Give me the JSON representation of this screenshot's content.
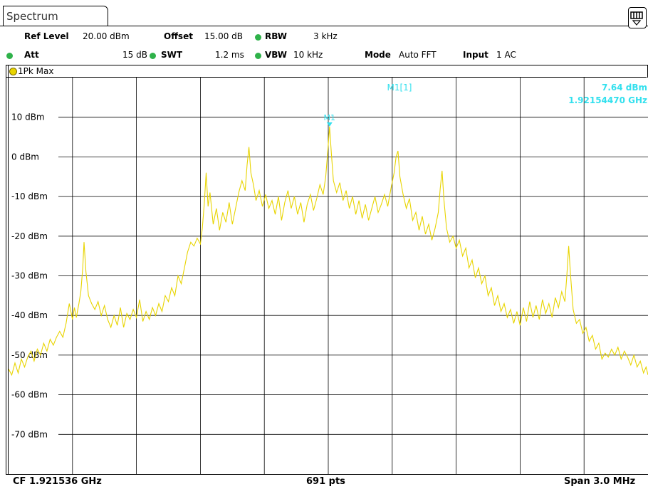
{
  "window": {
    "tab_label": "Spectrum"
  },
  "settings": {
    "ref_level_label": "Ref Level",
    "ref_level_value": "20.00 dBm",
    "offset_label": "Offset",
    "offset_value": "15.00 dB",
    "rbw_label": "RBW",
    "rbw_value": "3 kHz",
    "att_label": "Att",
    "att_value": "15 dB",
    "swt_label": "SWT",
    "swt_value": "1.2 ms",
    "vbw_label": "VBW",
    "vbw_value": "10 kHz",
    "mode_label": "Mode",
    "mode_value": "Auto FFT",
    "input_label": "Input",
    "input_value": "1 AC"
  },
  "trace": {
    "label": "1Pk Max",
    "color": "#e8d400"
  },
  "marker": {
    "name": "M1",
    "readout_label": "M1[1]",
    "readout_level": "7.64 dBm",
    "readout_freq": "1.92154470 GHz",
    "color": "#33e0ee"
  },
  "footer": {
    "cf": "CF 1.921536 GHz",
    "points": "691 pts",
    "span": "Span 3.0 MHz"
  },
  "chart_data": {
    "type": "line",
    "xlabel": "",
    "ylabel": "",
    "xlim": [
      0,
      10
    ],
    "ylim": [
      -80,
      20
    ],
    "y_ticks": [
      10,
      0,
      -10,
      -20,
      -30,
      -40,
      -50,
      -60,
      -70
    ],
    "y_tick_labels": [
      "10 dBm",
      "0 dBm",
      "-10 dBm",
      "-20 dBm",
      "-30 dBm",
      "-40 dBm",
      "-50 dBm",
      "-60 dBm",
      "-70 dBm"
    ],
    "grid": true,
    "background": "#ffffff",
    "series": [
      {
        "color": "#e8d400",
        "points": [
          [
            0.0,
            -53.5
          ],
          [
            0.05,
            -55.0
          ],
          [
            0.1,
            -52.0
          ],
          [
            0.15,
            -54.5
          ],
          [
            0.2,
            -51.0
          ],
          [
            0.25,
            -53.0
          ],
          [
            0.3,
            -50.5
          ],
          [
            0.35,
            -49.0
          ],
          [
            0.4,
            -51.5
          ],
          [
            0.45,
            -48.5
          ],
          [
            0.5,
            -50.0
          ],
          [
            0.55,
            -47.0
          ],
          [
            0.6,
            -49.0
          ],
          [
            0.65,
            -46.0
          ],
          [
            0.7,
            -47.5
          ],
          [
            0.75,
            -45.5
          ],
          [
            0.8,
            -44.0
          ],
          [
            0.85,
            -45.5
          ],
          [
            0.9,
            -42.0
          ],
          [
            0.95,
            -37.0
          ],
          [
            1.0,
            -41.0
          ],
          [
            1.03,
            -38.0
          ],
          [
            1.06,
            -40.5
          ],
          [
            1.1,
            -37.0
          ],
          [
            1.13,
            -34.0
          ],
          [
            1.16,
            -28.0
          ],
          [
            1.18,
            -21.5
          ],
          [
            1.21,
            -29.0
          ],
          [
            1.25,
            -35.0
          ],
          [
            1.3,
            -37.0
          ],
          [
            1.35,
            -38.5
          ],
          [
            1.4,
            -36.5
          ],
          [
            1.45,
            -40.0
          ],
          [
            1.5,
            -37.5
          ],
          [
            1.55,
            -41.0
          ],
          [
            1.6,
            -43.0
          ],
          [
            1.65,
            -40.0
          ],
          [
            1.7,
            -42.5
          ],
          [
            1.75,
            -38.0
          ],
          [
            1.8,
            -43.0
          ],
          [
            1.85,
            -39.5
          ],
          [
            1.9,
            -41.0
          ],
          [
            1.95,
            -38.5
          ],
          [
            2.0,
            -40.5
          ],
          [
            2.05,
            -36.0
          ],
          [
            2.1,
            -41.5
          ],
          [
            2.15,
            -39.0
          ],
          [
            2.2,
            -41.0
          ],
          [
            2.25,
            -38.0
          ],
          [
            2.3,
            -40.0
          ],
          [
            2.35,
            -37.0
          ],
          [
            2.4,
            -39.0
          ],
          [
            2.45,
            -35.0
          ],
          [
            2.5,
            -36.5
          ],
          [
            2.55,
            -33.0
          ],
          [
            2.6,
            -35.0
          ],
          [
            2.65,
            -30.0
          ],
          [
            2.7,
            -32.0
          ],
          [
            2.75,
            -28.0
          ],
          [
            2.8,
            -24.0
          ],
          [
            2.85,
            -21.5
          ],
          [
            2.9,
            -22.5
          ],
          [
            2.95,
            -20.5
          ],
          [
            3.0,
            -22.0
          ],
          [
            3.03,
            -18.0
          ],
          [
            3.06,
            -12.0
          ],
          [
            3.09,
            -4.0
          ],
          [
            3.12,
            -12.5
          ],
          [
            3.15,
            -9.0
          ],
          [
            3.2,
            -17.0
          ],
          [
            3.25,
            -13.0
          ],
          [
            3.3,
            -18.5
          ],
          [
            3.35,
            -14.0
          ],
          [
            3.4,
            -16.5
          ],
          [
            3.45,
            -11.5
          ],
          [
            3.5,
            -17.0
          ],
          [
            3.55,
            -13.0
          ],
          [
            3.6,
            -9.0
          ],
          [
            3.65,
            -6.0
          ],
          [
            3.7,
            -8.5
          ],
          [
            3.73,
            -2.0
          ],
          [
            3.76,
            2.5
          ],
          [
            3.79,
            -4.0
          ],
          [
            3.83,
            -7.0
          ],
          [
            3.87,
            -11.0
          ],
          [
            3.92,
            -8.5
          ],
          [
            3.97,
            -12.5
          ],
          [
            4.02,
            -9.5
          ],
          [
            4.07,
            -13.0
          ],
          [
            4.12,
            -11.0
          ],
          [
            4.17,
            -14.5
          ],
          [
            4.22,
            -10.0
          ],
          [
            4.27,
            -16.0
          ],
          [
            4.32,
            -11.5
          ],
          [
            4.37,
            -8.5
          ],
          [
            4.42,
            -13.0
          ],
          [
            4.47,
            -10.0
          ],
          [
            4.52,
            -14.5
          ],
          [
            4.57,
            -11.5
          ],
          [
            4.62,
            -16.5
          ],
          [
            4.67,
            -12.0
          ],
          [
            4.72,
            -9.5
          ],
          [
            4.77,
            -13.5
          ],
          [
            4.82,
            -10.5
          ],
          [
            4.87,
            -7.0
          ],
          [
            4.92,
            -9.5
          ],
          [
            4.96,
            -5.0
          ],
          [
            4.99,
            1.0
          ],
          [
            5.02,
            7.64
          ],
          [
            5.05,
            0.5
          ],
          [
            5.08,
            -6.0
          ],
          [
            5.13,
            -9.0
          ],
          [
            5.18,
            -6.5
          ],
          [
            5.23,
            -11.0
          ],
          [
            5.28,
            -8.5
          ],
          [
            5.33,
            -13.0
          ],
          [
            5.38,
            -10.0
          ],
          [
            5.43,
            -14.5
          ],
          [
            5.48,
            -11.0
          ],
          [
            5.53,
            -15.5
          ],
          [
            5.58,
            -12.0
          ],
          [
            5.63,
            -16.0
          ],
          [
            5.68,
            -13.0
          ],
          [
            5.73,
            -10.0
          ],
          [
            5.78,
            -14.0
          ],
          [
            5.83,
            -12.0
          ],
          [
            5.88,
            -9.5
          ],
          [
            5.93,
            -12.5
          ],
          [
            5.98,
            -8.0
          ],
          [
            6.03,
            -4.0
          ],
          [
            6.06,
            0.0
          ],
          [
            6.09,
            1.5
          ],
          [
            6.12,
            -5.0
          ],
          [
            6.17,
            -9.5
          ],
          [
            6.22,
            -13.0
          ],
          [
            6.27,
            -10.5
          ],
          [
            6.32,
            -16.0
          ],
          [
            6.37,
            -14.0
          ],
          [
            6.42,
            -18.5
          ],
          [
            6.47,
            -15.0
          ],
          [
            6.52,
            -19.5
          ],
          [
            6.57,
            -17.0
          ],
          [
            6.62,
            -21.0
          ],
          [
            6.67,
            -18.0
          ],
          [
            6.72,
            -14.0
          ],
          [
            6.75,
            -8.0
          ],
          [
            6.78,
            -3.5
          ],
          [
            6.81,
            -11.0
          ],
          [
            6.85,
            -18.0
          ],
          [
            6.9,
            -21.5
          ],
          [
            6.95,
            -20.0
          ],
          [
            7.0,
            -23.0
          ],
          [
            7.05,
            -21.0
          ],
          [
            7.1,
            -25.0
          ],
          [
            7.15,
            -23.0
          ],
          [
            7.2,
            -28.0
          ],
          [
            7.25,
            -26.0
          ],
          [
            7.3,
            -30.5
          ],
          [
            7.35,
            -28.0
          ],
          [
            7.4,
            -32.0
          ],
          [
            7.45,
            -30.0
          ],
          [
            7.5,
            -35.0
          ],
          [
            7.55,
            -33.0
          ],
          [
            7.6,
            -37.5
          ],
          [
            7.65,
            -35.0
          ],
          [
            7.7,
            -39.0
          ],
          [
            7.75,
            -37.0
          ],
          [
            7.8,
            -40.5
          ],
          [
            7.85,
            -38.5
          ],
          [
            7.9,
            -42.0
          ],
          [
            7.95,
            -39.0
          ],
          [
            8.0,
            -42.5
          ],
          [
            8.05,
            -38.0
          ],
          [
            8.1,
            -41.5
          ],
          [
            8.15,
            -36.5
          ],
          [
            8.2,
            -40.5
          ],
          [
            8.25,
            -37.5
          ],
          [
            8.3,
            -41.0
          ],
          [
            8.35,
            -36.0
          ],
          [
            8.4,
            -39.5
          ],
          [
            8.45,
            -37.0
          ],
          [
            8.5,
            -40.5
          ],
          [
            8.55,
            -35.5
          ],
          [
            8.6,
            -38.0
          ],
          [
            8.65,
            -34.0
          ],
          [
            8.7,
            -36.5
          ],
          [
            8.73,
            -30.0
          ],
          [
            8.76,
            -22.5
          ],
          [
            8.79,
            -30.0
          ],
          [
            8.83,
            -38.5
          ],
          [
            8.88,
            -42.0
          ],
          [
            8.93,
            -41.0
          ],
          [
            8.98,
            -44.5
          ],
          [
            9.03,
            -43.0
          ],
          [
            9.08,
            -46.5
          ],
          [
            9.13,
            -45.0
          ],
          [
            9.18,
            -48.5
          ],
          [
            9.23,
            -47.0
          ],
          [
            9.28,
            -51.0
          ],
          [
            9.33,
            -49.5
          ],
          [
            9.38,
            -50.5
          ],
          [
            9.43,
            -48.5
          ],
          [
            9.48,
            -50.0
          ],
          [
            9.53,
            -48.0
          ],
          [
            9.58,
            -51.0
          ],
          [
            9.63,
            -49.0
          ],
          [
            9.68,
            -50.5
          ],
          [
            9.73,
            -52.5
          ],
          [
            9.78,
            -50.0
          ],
          [
            9.83,
            -53.0
          ],
          [
            9.88,
            -51.5
          ],
          [
            9.93,
            -54.5
          ],
          [
            9.97,
            -53.0
          ],
          [
            10.0,
            -55.0
          ]
        ]
      }
    ],
    "markers": [
      {
        "name": "M1",
        "x": 5.02,
        "y": 7.64
      }
    ]
  }
}
